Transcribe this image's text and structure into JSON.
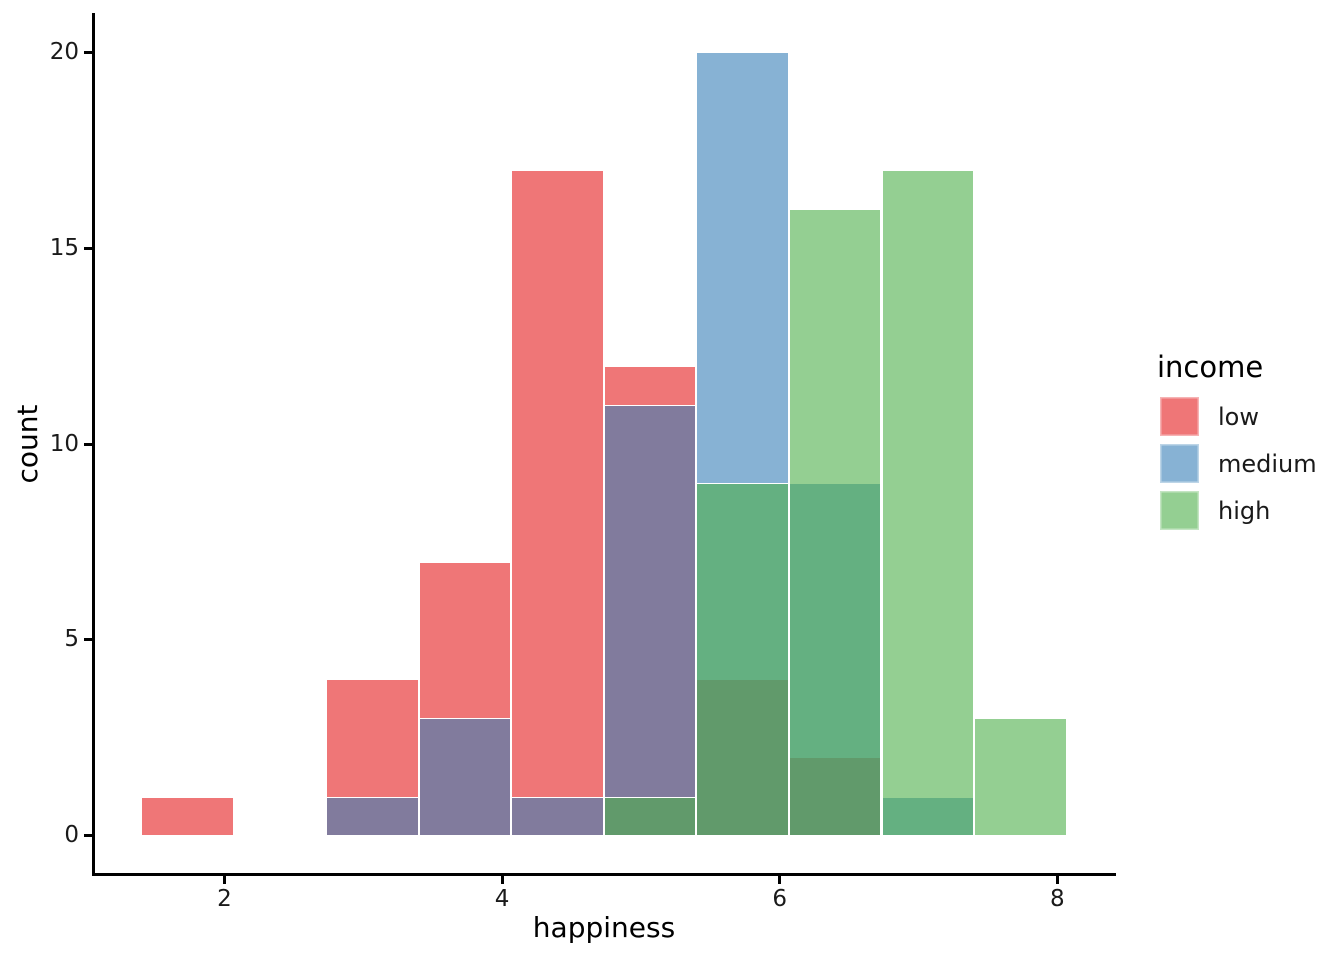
{
  "figure": {
    "background": "#FFFFFF",
    "axis_color": "#000000",
    "tick_label_color": "#1A1A1A",
    "bar_border_color": "#FFFFFF"
  },
  "chart_data": {
    "type": "bar",
    "subtype": "overlaid-histogram",
    "title": "",
    "xlabel": "happiness",
    "ylabel": "count",
    "grid": "off",
    "legend_position": "right",
    "x_tick_labels": [
      "2",
      "4",
      "6",
      "8"
    ],
    "x_tick_values": [
      2,
      4,
      6,
      8
    ],
    "y_tick_labels": [
      "0",
      "5",
      "10",
      "15",
      "20"
    ],
    "y_tick_values": [
      0,
      5,
      10,
      15,
      20
    ],
    "x_axis_range": [
      1.0667,
      8.4
    ],
    "y_axis_range": [
      -1,
      21
    ],
    "bin_start": 1.4,
    "bin_width": 0.6666667,
    "bin_count": 10,
    "bin_edges": [
      1.4,
      2.0667,
      2.7333,
      3.4,
      4.0667,
      4.7333,
      5.4,
      6.0667,
      6.7333,
      7.4,
      8.0667
    ],
    "legend": {
      "title": "income",
      "entries": [
        {
          "label": "low",
          "swatch_color": "rgba(228,26,28,0.6)",
          "base_color": "#E41A1C"
        },
        {
          "label": "medium",
          "swatch_color": "rgba(55,126,184,0.6)",
          "base_color": "#377EB8"
        },
        {
          "label": "high",
          "swatch_color": "rgba(77,175,74,0.6)",
          "base_color": "#4DAF4A"
        }
      ]
    },
    "series": [
      {
        "name": "low",
        "fill": "rgba(228,26,28,0.6)",
        "counts": [
          1,
          0,
          4,
          7,
          17,
          12,
          4,
          2,
          0,
          0
        ]
      },
      {
        "name": "medium",
        "fill": "rgba(55,126,184,0.6)",
        "counts": [
          0,
          0,
          1,
          3,
          1,
          11,
          20,
          9,
          1,
          0
        ]
      },
      {
        "name": "high",
        "fill": "rgba(77,175,74,0.6)",
        "counts": [
          0,
          0,
          0,
          0,
          0,
          1,
          9,
          16,
          17,
          3
        ]
      }
    ]
  }
}
